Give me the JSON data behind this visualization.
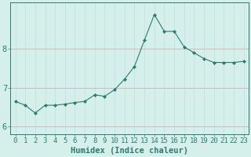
{
  "x": [
    0,
    1,
    2,
    3,
    4,
    5,
    6,
    7,
    8,
    9,
    10,
    11,
    12,
    13,
    14,
    15,
    16,
    17,
    18,
    19,
    20,
    21,
    22,
    23
  ],
  "y": [
    6.65,
    6.55,
    6.35,
    6.55,
    6.55,
    6.58,
    6.62,
    6.65,
    6.82,
    6.78,
    6.95,
    7.22,
    7.55,
    8.22,
    8.88,
    8.45,
    8.45,
    8.05,
    7.9,
    7.75,
    7.65,
    7.65,
    7.65,
    7.68
  ],
  "xlabel": "Humidex (Indice chaleur)",
  "ylim": [
    5.8,
    9.2
  ],
  "xlim": [
    -0.5,
    23.5
  ],
  "yticks": [
    6,
    7,
    8
  ],
  "xticks": [
    0,
    1,
    2,
    3,
    4,
    5,
    6,
    7,
    8,
    9,
    10,
    11,
    12,
    13,
    14,
    15,
    16,
    17,
    18,
    19,
    20,
    21,
    22,
    23
  ],
  "line_color": "#2a7d6e",
  "marker_color": "#2a7d6e",
  "bg_color": "#d5f0eb",
  "grid_color_h": "#d4b8b8",
  "grid_color_v": "#c5e5e0",
  "axis_color": "#2a7d6e",
  "tick_color": "#2a7d6e",
  "label_color": "#2a7d6e",
  "xlabel_fontsize": 7.5,
  "ytick_fontsize": 7.5,
  "xtick_fontsize": 6.5
}
